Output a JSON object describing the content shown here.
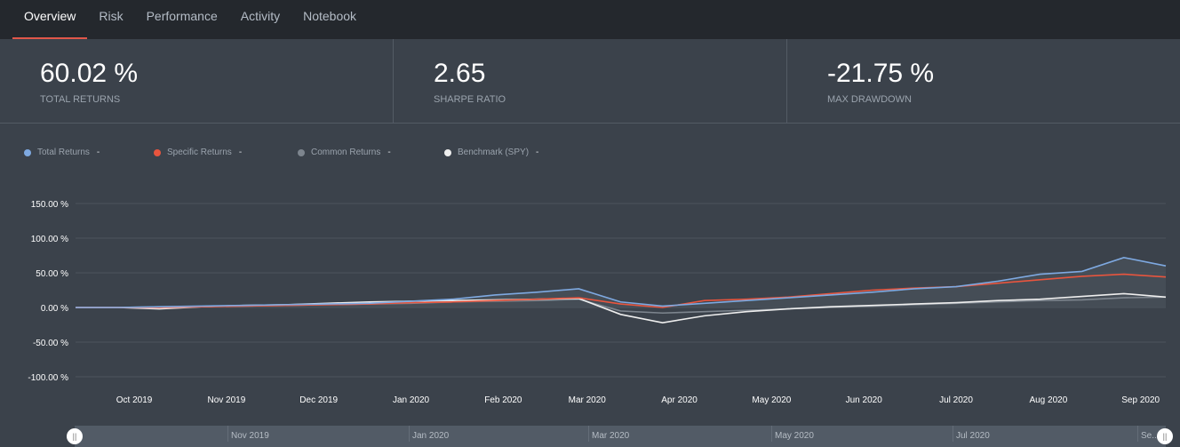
{
  "tabs": [
    "Overview",
    "Risk",
    "Performance",
    "Activity",
    "Notebook"
  ],
  "stats": [
    {
      "value": "60.02 %",
      "label": "TOTAL RETURNS"
    },
    {
      "value": "2.65",
      "label": "SHARPE RATIO"
    },
    {
      "value": "-21.75 %",
      "label": "MAX DRAWDOWN"
    }
  ],
  "legend": [
    {
      "label": "Total Returns",
      "color": "#7ea9e1",
      "value": "-"
    },
    {
      "label": "Specific Returns",
      "color": "#e8553e",
      "value": "-"
    },
    {
      "label": "Common Returns",
      "color": "#7d858e",
      "value": "-"
    },
    {
      "label": "Benchmark (SPY)",
      "color": "#eeeeee",
      "value": "-"
    }
  ],
  "navigator": {
    "labels": [
      "Nov 2019",
      "Jan 2020",
      "Mar 2020",
      "May 2020",
      "Jul 2020",
      "Se..."
    ]
  },
  "chart_data": {
    "type": "line",
    "x_range": [
      "2019-09-10",
      "2020-09-15"
    ],
    "x_step": "biweekly",
    "ylim": [
      -100,
      150
    ],
    "yticks": [
      "150.00 %",
      "100.00 %",
      "50.00 %",
      "0.00 %",
      "-50.00 %",
      "-100.00 %"
    ],
    "ytick_values": [
      150,
      100,
      50,
      0,
      -50,
      -100
    ],
    "xticks": [
      "Oct 2019",
      "Nov 2019",
      "Dec 2019",
      "Jan 2020",
      "Feb 2020",
      "Mar 2020",
      "Apr 2020",
      "May 2020",
      "Jun 2020",
      "Jul 2020",
      "Aug 2020",
      "Sep 2020"
    ],
    "xtick_index": [
      1.4,
      3.6,
      5.8,
      8.0,
      10.2,
      12.2,
      14.4,
      16.6,
      18.8,
      21.0,
      23.2,
      25.4
    ],
    "series": [
      {
        "name": "Common Returns",
        "color": "#7d858e",
        "values": [
          0,
          0,
          1,
          1,
          2,
          3,
          4,
          5,
          6,
          8,
          9,
          10,
          12,
          -5,
          -8,
          -6,
          -4,
          -2,
          0,
          2,
          4,
          6,
          8,
          10,
          11,
          14,
          15
        ]
      },
      {
        "name": "Benchmark (SPY)",
        "color": "#eeeeee",
        "values": [
          0,
          0,
          -2,
          1,
          3,
          4,
          6,
          8,
          9,
          10,
          11,
          12,
          13,
          -10,
          -22,
          -12,
          -6,
          -2,
          1,
          3,
          5,
          7,
          10,
          12,
          16,
          20,
          15
        ]
      },
      {
        "name": "Specific Returns",
        "color": "#e8553e",
        "values": [
          0,
          0,
          0,
          1,
          2,
          3,
          4,
          5,
          7,
          8,
          10,
          12,
          14,
          5,
          0,
          10,
          12,
          15,
          20,
          25,
          28,
          30,
          35,
          40,
          45,
          48,
          44
        ]
      },
      {
        "name": "Total Returns",
        "color": "#7ea9e1",
        "values": [
          0,
          0,
          1,
          2,
          3,
          4,
          5,
          6,
          9,
          12,
          18,
          22,
          27,
          8,
          2,
          6,
          10,
          14,
          18,
          22,
          27,
          30,
          38,
          48,
          52,
          72,
          60
        ]
      }
    ]
  }
}
